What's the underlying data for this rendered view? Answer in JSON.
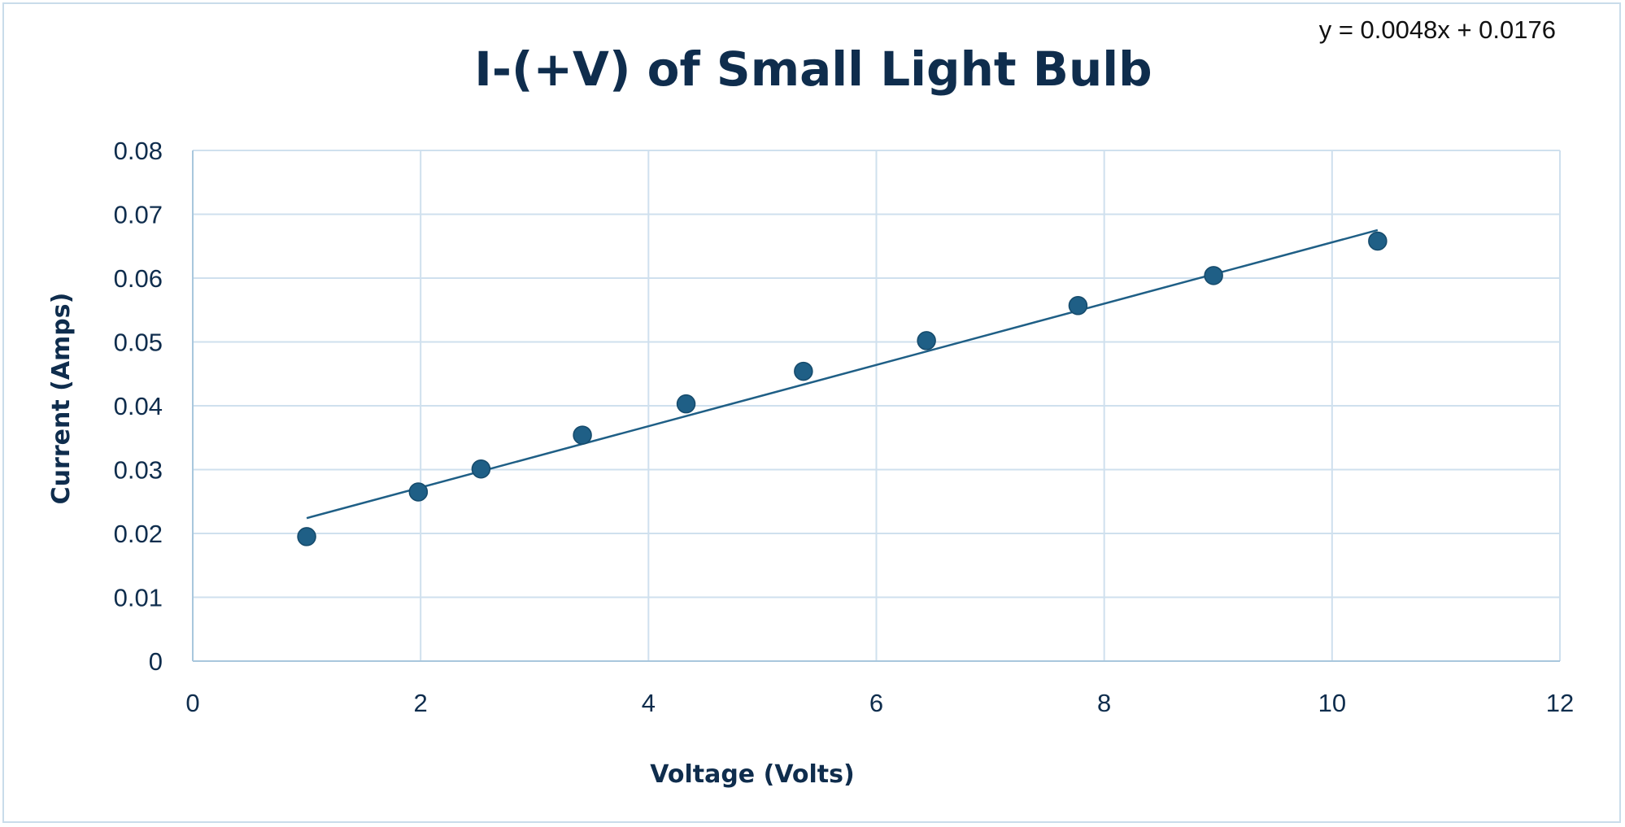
{
  "chart_data": {
    "type": "scatter",
    "title": "I-(+V) of Small Light Bulb",
    "xlabel": "Voltage (Volts)",
    "ylabel": "Current (Amps)",
    "xlim": [
      0,
      12
    ],
    "ylim": [
      0,
      0.08
    ],
    "x_ticks": [
      "0",
      "2",
      "4",
      "6",
      "8",
      "10",
      "12"
    ],
    "y_ticks": [
      "0",
      "0.01",
      "0.02",
      "0.03",
      "0.04",
      "0.05",
      "0.06",
      "0.07",
      "0.08"
    ],
    "grid": true,
    "legend": "none",
    "marker_color": "#1f5f86",
    "trendline_color": "#1f5f86",
    "series": [
      {
        "points": [
          {
            "x": 1.0,
            "y": 0.0195
          },
          {
            "x": 1.98,
            "y": 0.0265
          },
          {
            "x": 2.53,
            "y": 0.0301
          },
          {
            "x": 3.42,
            "y": 0.0354
          },
          {
            "x": 4.33,
            "y": 0.0403
          },
          {
            "x": 5.36,
            "y": 0.0454
          },
          {
            "x": 6.44,
            "y": 0.0502
          },
          {
            "x": 7.77,
            "y": 0.0557
          },
          {
            "x": 8.96,
            "y": 0.0604
          },
          {
            "x": 10.4,
            "y": 0.0658
          }
        ]
      }
    ],
    "trendline": {
      "type": "linear",
      "slope": 0.0048,
      "intercept": 0.0176,
      "x_range": [
        1.0,
        10.4
      ],
      "equation": "y = 0.0048x + 0.0176"
    }
  }
}
